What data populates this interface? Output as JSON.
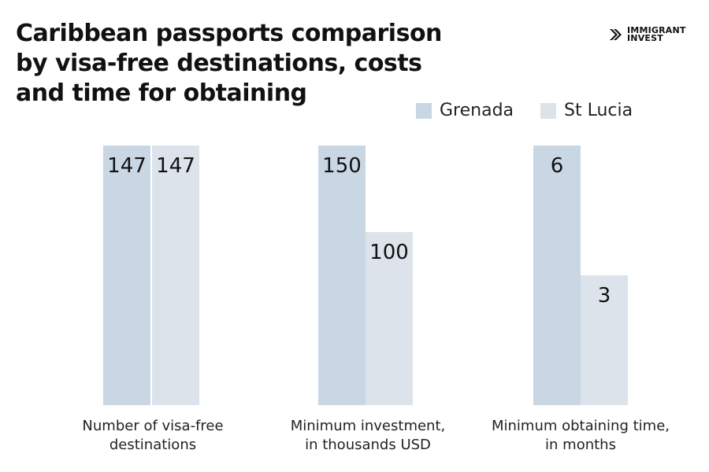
{
  "title": "Caribbean passports comparison by visa-free destinations, costs and time for obtaining",
  "logo": {
    "line1": "IMMIGRANT",
    "line2": "INVEST"
  },
  "chart_data": {
    "type": "bar",
    "title": "Caribbean passports comparison by visa-free destinations, costs and time for obtaining",
    "categories": [
      "Number of visa-free destinations",
      "Minimum investment, in thousands USD",
      "Minimum obtaining time, in months"
    ],
    "series": [
      {
        "name": "Grenada",
        "color": "#c9d7e5",
        "values": [
          147,
          150,
          6
        ]
      },
      {
        "name": "St Lucia",
        "color": "#dde3ea",
        "values": [
          147,
          100,
          3
        ]
      }
    ],
    "legend": "top-right",
    "grid": false,
    "axes_visible": false,
    "scale": "each category scaled independently to its own maximum"
  }
}
